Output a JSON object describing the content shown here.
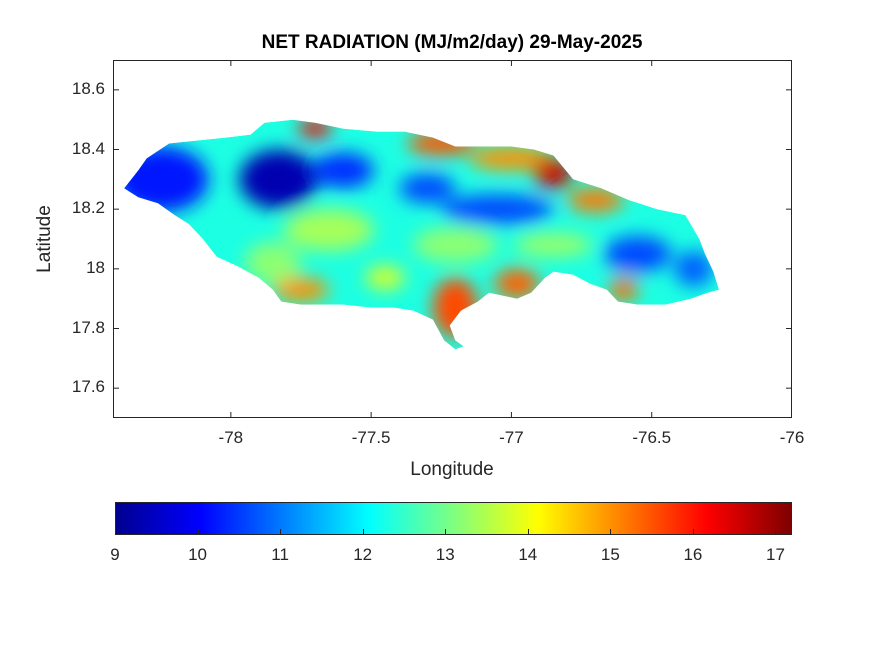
{
  "title": "NET RADIATION (MJ/m2/day) 29-May-2025",
  "xlabel": "Longitude",
  "ylabel": "Latitude",
  "x_ticks": [
    "-78",
    "-77.5",
    "-77",
    "-76.5",
    "-76"
  ],
  "y_ticks": [
    "18.6",
    "18.4",
    "18.2",
    "18",
    "17.8",
    "17.6"
  ],
  "colorbar": {
    "ticks": [
      "9",
      "10",
      "11",
      "12",
      "13",
      "14",
      "15",
      "16",
      "17"
    ],
    "colormap": "jet",
    "colors": [
      "#00008f",
      "#0000ff",
      "#007fff",
      "#00ffff",
      "#7fff7f",
      "#ffff00",
      "#ff7f00",
      "#ff0000",
      "#7f0000"
    ]
  },
  "map": {
    "region": "Jamaica",
    "xlim": [
      -78.42,
      -76
    ],
    "ylim": [
      17.5,
      18.7
    ]
  },
  "chart_data": {
    "type": "heatmap",
    "title": "NET RADIATION (MJ/m2/day) 29-May-2025",
    "xlabel": "Longitude",
    "ylabel": "Latitude",
    "xlim": [
      -78.42,
      -76
    ],
    "ylim": [
      17.5,
      18.7
    ],
    "clim": [
      9,
      17.2
    ],
    "outline": [
      [
        -78.38,
        18.27
      ],
      [
        -78.33,
        18.33
      ],
      [
        -78.3,
        18.37
      ],
      [
        -78.22,
        18.42
      ],
      [
        -78.12,
        18.43
      ],
      [
        -78.02,
        18.44
      ],
      [
        -77.93,
        18.45
      ],
      [
        -77.88,
        18.49
      ],
      [
        -77.78,
        18.5
      ],
      [
        -77.7,
        18.49
      ],
      [
        -77.6,
        18.47
      ],
      [
        -77.48,
        18.46
      ],
      [
        -77.38,
        18.46
      ],
      [
        -77.28,
        18.44
      ],
      [
        -77.2,
        18.41
      ],
      [
        -77.1,
        18.41
      ],
      [
        -77.0,
        18.41
      ],
      [
        -76.92,
        18.4
      ],
      [
        -76.85,
        18.38
      ],
      [
        -76.78,
        18.3
      ],
      [
        -76.68,
        18.27
      ],
      [
        -76.58,
        18.23
      ],
      [
        -76.48,
        18.2
      ],
      [
        -76.38,
        18.18
      ],
      [
        -76.33,
        18.1
      ],
      [
        -76.31,
        18.05
      ],
      [
        -76.28,
        17.99
      ],
      [
        -76.26,
        17.93
      ],
      [
        -76.3,
        17.92
      ],
      [
        -76.36,
        17.9
      ],
      [
        -76.45,
        17.88
      ],
      [
        -76.55,
        17.88
      ],
      [
        -76.62,
        17.89
      ],
      [
        -76.66,
        17.93
      ],
      [
        -76.72,
        17.95
      ],
      [
        -76.78,
        17.98
      ],
      [
        -76.85,
        17.99
      ],
      [
        -76.88,
        17.97
      ],
      [
        -76.93,
        17.92
      ],
      [
        -76.98,
        17.9
      ],
      [
        -77.03,
        17.91
      ],
      [
        -77.08,
        17.92
      ],
      [
        -77.12,
        17.89
      ],
      [
        -77.18,
        17.86
      ],
      [
        -77.22,
        17.81
      ],
      [
        -77.2,
        17.76
      ],
      [
        -77.17,
        17.74
      ],
      [
        -77.2,
        17.73
      ],
      [
        -77.24,
        17.76
      ],
      [
        -77.28,
        17.83
      ],
      [
        -77.35,
        17.86
      ],
      [
        -77.42,
        17.87
      ],
      [
        -77.5,
        17.87
      ],
      [
        -77.6,
        17.88
      ],
      [
        -77.75,
        17.88
      ],
      [
        -77.82,
        17.89
      ],
      [
        -77.85,
        17.93
      ],
      [
        -77.9,
        17.97
      ],
      [
        -77.98,
        18.01
      ],
      [
        -78.05,
        18.04
      ],
      [
        -78.1,
        18.1
      ],
      [
        -78.15,
        18.15
      ],
      [
        -78.2,
        18.18
      ],
      [
        -78.26,
        18.22
      ],
      [
        -78.33,
        18.24
      ],
      [
        -78.38,
        18.27
      ]
    ],
    "base_value": 12.3,
    "zones": [
      {
        "lon": -78.25,
        "lat": 18.3,
        "rx": 0.17,
        "ry": 0.11,
        "value": 10.2
      },
      {
        "lon": -77.83,
        "lat": 18.3,
        "rx": 0.14,
        "ry": 0.1,
        "value": 9.4
      },
      {
        "lon": -77.6,
        "lat": 18.33,
        "rx": 0.11,
        "ry": 0.06,
        "value": 10.4
      },
      {
        "lon": -77.3,
        "lat": 18.27,
        "rx": 0.1,
        "ry": 0.05,
        "value": 10.6
      },
      {
        "lon": -77.05,
        "lat": 18.2,
        "rx": 0.2,
        "ry": 0.05,
        "value": 10.6
      },
      {
        "lon": -76.55,
        "lat": 18.05,
        "rx": 0.12,
        "ry": 0.06,
        "value": 10.6
      },
      {
        "lon": -76.35,
        "lat": 18.0,
        "rx": 0.07,
        "ry": 0.06,
        "value": 10.8
      },
      {
        "lon": -77.65,
        "lat": 18.13,
        "rx": 0.16,
        "ry": 0.07,
        "value": 13.4
      },
      {
        "lon": -77.85,
        "lat": 18.02,
        "rx": 0.1,
        "ry": 0.07,
        "value": 13.2
      },
      {
        "lon": -77.2,
        "lat": 18.08,
        "rx": 0.15,
        "ry": 0.06,
        "value": 13.2
      },
      {
        "lon": -76.85,
        "lat": 18.08,
        "rx": 0.14,
        "ry": 0.04,
        "value": 13.3
      },
      {
        "lon": -77.7,
        "lat": 18.47,
        "rx": 0.06,
        "ry": 0.03,
        "value": 16.2
      },
      {
        "lon": -77.25,
        "lat": 18.42,
        "rx": 0.12,
        "ry": 0.04,
        "value": 15.5
      },
      {
        "lon": -77.0,
        "lat": 18.37,
        "rx": 0.15,
        "ry": 0.04,
        "value": 15.0
      },
      {
        "lon": -76.85,
        "lat": 18.32,
        "rx": 0.07,
        "ry": 0.05,
        "value": 16.6
      },
      {
        "lon": -76.7,
        "lat": 18.23,
        "rx": 0.1,
        "ry": 0.04,
        "value": 15.2
      },
      {
        "lon": -77.2,
        "lat": 17.87,
        "rx": 0.08,
        "ry": 0.1,
        "value": 15.6
      },
      {
        "lon": -76.98,
        "lat": 17.95,
        "rx": 0.08,
        "ry": 0.05,
        "value": 15.4
      },
      {
        "lon": -77.75,
        "lat": 17.93,
        "rx": 0.1,
        "ry": 0.04,
        "value": 15.0
      },
      {
        "lon": -76.6,
        "lat": 17.93,
        "rx": 0.05,
        "ry": 0.04,
        "value": 15.3
      },
      {
        "lon": -77.45,
        "lat": 17.97,
        "rx": 0.07,
        "ry": 0.04,
        "value": 13.8
      }
    ]
  }
}
